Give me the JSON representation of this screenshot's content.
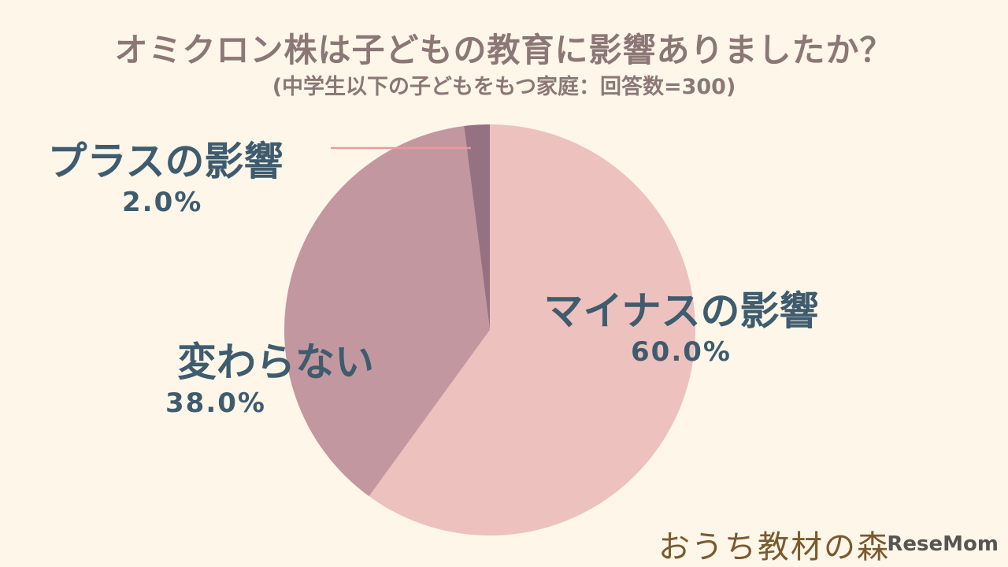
{
  "chart_data": {
    "type": "pie",
    "title": "オミクロン株は子どもの教育に影響ありましたか？",
    "subtitle": "(中学生以下の子どもをもつ家庭：回答数=300)",
    "start_angle": "top",
    "direction": "clockwise",
    "slices": [
      {
        "label": "マイナスの影響",
        "value": 60.0,
        "display": "60.0%",
        "color": "#EDC1BE"
      },
      {
        "label": "変わらない",
        "value": 38.0,
        "display": "38.0%",
        "color": "#C3979F"
      },
      {
        "label": "プラスの影響",
        "value": 2.0,
        "display": "2.0%",
        "color": "#957182"
      }
    ],
    "leader_line_color": "#E89A9E"
  },
  "logo": {
    "text": "おうち教材の森"
  },
  "watermark": {
    "text": "ReseMom"
  }
}
